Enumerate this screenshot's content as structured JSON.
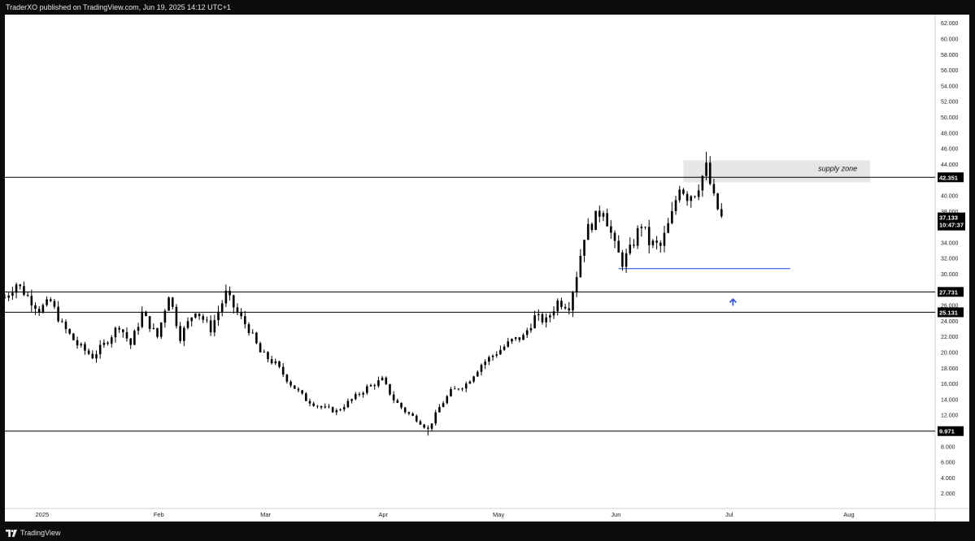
{
  "header": {
    "publish_line": "TraderXO published on TradingView.com, Jun 19, 2025 14:12 UTC+1"
  },
  "footer": {
    "brand": "TradingView",
    "logo_icon": "tradingview-logo-icon"
  },
  "colors": {
    "background": "#0c0c0c",
    "chart_bg": "#ffffff",
    "candle": "#000000",
    "level_line": "#000000",
    "support_line": "#3b5bdb",
    "arrow": "#3b5bdb",
    "zone_fill": "#e6e6e6",
    "badge_bg": "#000000"
  },
  "chart_data": {
    "type": "candlestick",
    "ylim": [
      0,
      63
    ],
    "yticks": [
      "2.000",
      "4.000",
      "6.000",
      "8.000",
      "10.000",
      "12.000",
      "14.000",
      "16.000",
      "18.000",
      "20.000",
      "22.000",
      "24.000",
      "26.000",
      "28.000",
      "30.000",
      "32.000",
      "34.000",
      "36.000",
      "38.000",
      "40.000",
      "42.000",
      "44.000",
      "46.000",
      "48.000",
      "50.000",
      "52.000",
      "54.000",
      "56.000",
      "58.000",
      "60.000",
      "62.000"
    ],
    "xlim": [
      "2024-12-24",
      "2025-09-03"
    ],
    "x_ticks": [
      {
        "label": "2025",
        "date": "2025-01-01"
      },
      {
        "label": "Feb",
        "date": "2025-02-01"
      },
      {
        "label": "Mar",
        "date": "2025-03-01"
      },
      {
        "label": "Apr",
        "date": "2025-04-01"
      },
      {
        "label": "May",
        "date": "2025-05-01"
      },
      {
        "label": "Jun",
        "date": "2025-06-01"
      },
      {
        "label": "Jul",
        "date": "2025-07-01"
      },
      {
        "label": "Aug",
        "date": "2025-08-01"
      }
    ],
    "price_path": [
      [
        "2024-12-24",
        27
      ],
      [
        "2024-12-27",
        28.8
      ],
      [
        "2025-01-02",
        25.5
      ],
      [
        "2025-01-05",
        26.5
      ],
      [
        "2025-01-08",
        23.5
      ],
      [
        "2025-01-12",
        21
      ],
      [
        "2025-01-16",
        19.5
      ],
      [
        "2025-01-19",
        21
      ],
      [
        "2025-01-23",
        23.5
      ],
      [
        "2025-01-26",
        21
      ],
      [
        "2025-01-29",
        25
      ],
      [
        "2025-02-02",
        22
      ],
      [
        "2025-02-05",
        27.5
      ],
      [
        "2025-02-08",
        22
      ],
      [
        "2025-02-12",
        25.5
      ],
      [
        "2025-02-16",
        23
      ],
      [
        "2025-02-20",
        27.5
      ],
      [
        "2025-02-23",
        25
      ],
      [
        "2025-02-26",
        23
      ],
      [
        "2025-03-01",
        20
      ],
      [
        "2025-03-05",
        18.5
      ],
      [
        "2025-03-09",
        16
      ],
      [
        "2025-03-13",
        14
      ],
      [
        "2025-03-17",
        13
      ],
      [
        "2025-03-21",
        12.5
      ],
      [
        "2025-03-25",
        14
      ],
      [
        "2025-03-29",
        15.5
      ],
      [
        "2025-04-02",
        16.5
      ],
      [
        "2025-04-05",
        14
      ],
      [
        "2025-04-08",
        12.5
      ],
      [
        "2025-04-11",
        11.5
      ],
      [
        "2025-04-14",
        10.2
      ],
      [
        "2025-04-17",
        13
      ],
      [
        "2025-04-20",
        15
      ],
      [
        "2025-04-24",
        16
      ],
      [
        "2025-04-28",
        18.5
      ],
      [
        "2025-05-02",
        20
      ],
      [
        "2025-05-06",
        21.5
      ],
      [
        "2025-05-09",
        22
      ],
      [
        "2025-05-12",
        24.5
      ],
      [
        "2025-05-15",
        24
      ],
      [
        "2025-05-18",
        26.5
      ],
      [
        "2025-05-21",
        26
      ],
      [
        "2025-05-23",
        30
      ],
      [
        "2025-05-25",
        35
      ],
      [
        "2025-05-27",
        36.5
      ],
      [
        "2025-05-30",
        38.5
      ],
      [
        "2025-06-02",
        33.5
      ],
      [
        "2025-06-04",
        31.5
      ],
      [
        "2025-06-06",
        33
      ],
      [
        "2025-06-09",
        36.5
      ],
      [
        "2025-06-11",
        34
      ],
      [
        "2025-06-14",
        33.5
      ],
      [
        "2025-06-17",
        37.5
      ],
      [
        "2025-06-19",
        41.5
      ],
      [
        "2025-06-21",
        40
      ],
      [
        "2025-06-23",
        40.5
      ],
      [
        "2025-06-25",
        42.5
      ],
      [
        "2025-06-26",
        43.5
      ],
      [
        "2025-06-28",
        39.5
      ],
      [
        "2025-06-30",
        37.13
      ]
    ],
    "high_point": [
      "2025-06-26",
      45.6
    ],
    "low_point": [
      "2025-04-14",
      9.4
    ],
    "levels": [
      {
        "value": 42.351,
        "label": "42.351"
      },
      {
        "value": 27.731,
        "label": "27.731"
      },
      {
        "value": 25.131,
        "label": "25.131"
      },
      {
        "value": 9.971,
        "label": "9.971"
      }
    ],
    "last_price": {
      "label": "37.133",
      "countdown": "10:47:37"
    },
    "supply_zone": {
      "label": "supply zone",
      "from": "2025-06-20",
      "to": "2025-08-08",
      "ymin": 41.7,
      "ymax": 44.5
    },
    "support_line": {
      "from": "2025-06-03",
      "to": "2025-07-18",
      "y": 30.7
    },
    "arrow": {
      "date": "2025-07-03",
      "y": 26.8,
      "direction": "up"
    }
  }
}
